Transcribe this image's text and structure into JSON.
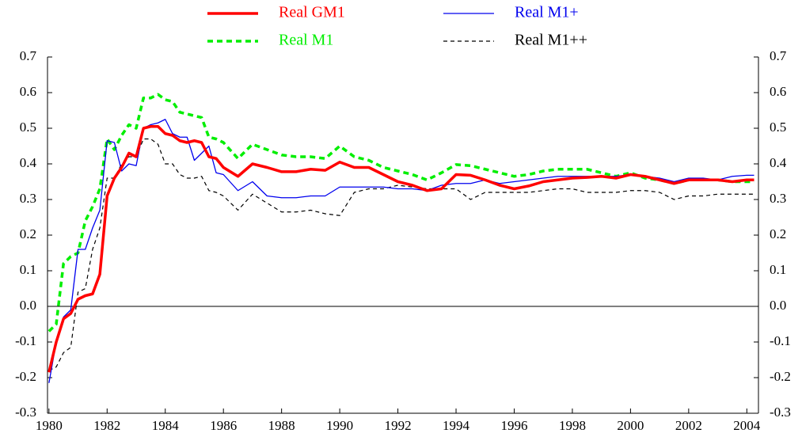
{
  "chart_data": {
    "type": "line",
    "x": [
      1980,
      1980.25,
      1980.5,
      1980.75,
      1981,
      1981.25,
      1981.5,
      1981.75,
      1982,
      1982.25,
      1982.5,
      1982.75,
      1983,
      1983.25,
      1983.5,
      1983.75,
      1984,
      1984.25,
      1984.5,
      1984.75,
      1985,
      1985.25,
      1985.5,
      1985.75,
      1986,
      1986.5,
      1987,
      1987.5,
      1988,
      1988.5,
      1989,
      1989.5,
      1990,
      1990.5,
      1991,
      1991.5,
      1992,
      1992.5,
      1993,
      1993.5,
      1994,
      1994.5,
      1995,
      1995.5,
      1996,
      1996.5,
      1997,
      1997.5,
      1998,
      1998.5,
      1999,
      1999.5,
      2000,
      2000.5,
      2001,
      2001.5,
      2002,
      2002.5,
      2003,
      2003.5,
      2004,
      2004.25
    ],
    "series": [
      {
        "name": "Real GM1",
        "color": "#ff0000",
        "style": "solid",
        "values": [
          -0.185,
          -0.1,
          -0.035,
          -0.02,
          0.02,
          0.03,
          0.035,
          0.09,
          0.31,
          0.36,
          0.39,
          0.43,
          0.42,
          0.5,
          0.505,
          0.505,
          0.485,
          0.48,
          0.465,
          0.46,
          0.465,
          0.46,
          0.42,
          0.415,
          0.39,
          0.365,
          0.4,
          0.39,
          0.378,
          0.378,
          0.385,
          0.382,
          0.405,
          0.39,
          0.39,
          0.37,
          0.35,
          0.34,
          0.325,
          0.33,
          0.37,
          0.368,
          0.355,
          0.34,
          0.33,
          0.338,
          0.35,
          0.355,
          0.36,
          0.362,
          0.365,
          0.36,
          0.37,
          0.365,
          0.355,
          0.345,
          0.355,
          0.355,
          0.355,
          0.35,
          0.355,
          0.355
        ]
      },
      {
        "name": "Real M1",
        "color": "#00ee00",
        "style": "dashed",
        "values": [
          -0.07,
          -0.05,
          0.12,
          0.14,
          0.15,
          0.24,
          0.28,
          0.33,
          0.47,
          0.44,
          0.48,
          0.51,
          0.5,
          0.585,
          0.585,
          0.595,
          0.58,
          0.575,
          0.545,
          0.54,
          0.535,
          0.53,
          0.475,
          0.47,
          0.46,
          0.415,
          0.455,
          0.44,
          0.425,
          0.42,
          0.42,
          0.415,
          0.45,
          0.42,
          0.41,
          0.39,
          0.38,
          0.37,
          0.355,
          0.375,
          0.398,
          0.395,
          0.385,
          0.375,
          0.365,
          0.37,
          0.38,
          0.385,
          0.385,
          0.385,
          0.375,
          0.365,
          0.375,
          0.36,
          0.355,
          0.345,
          0.355,
          0.355,
          0.355,
          0.35,
          0.35,
          0.35
        ]
      },
      {
        "name": "Real M1+",
        "color": "#0000ee",
        "style": "thin",
        "values": [
          -0.215,
          -0.1,
          -0.03,
          -0.01,
          0.16,
          0.16,
          0.22,
          0.27,
          0.465,
          0.46,
          0.38,
          0.4,
          0.395,
          0.5,
          0.51,
          0.515,
          0.525,
          0.485,
          0.475,
          0.475,
          0.41,
          0.43,
          0.45,
          0.375,
          0.37,
          0.325,
          0.35,
          0.31,
          0.305,
          0.305,
          0.31,
          0.31,
          0.335,
          0.335,
          0.335,
          0.335,
          0.33,
          0.33,
          0.325,
          0.34,
          0.345,
          0.345,
          0.355,
          0.345,
          0.35,
          0.355,
          0.36,
          0.365,
          0.365,
          0.365,
          0.365,
          0.365,
          0.37,
          0.365,
          0.36,
          0.35,
          0.36,
          0.36,
          0.355,
          0.365,
          0.368,
          0.368
        ]
      },
      {
        "name": "Real M1++",
        "color": "#000000",
        "style": "thin-dashed",
        "values": [
          -0.18,
          -0.17,
          -0.13,
          -0.115,
          0.04,
          0.05,
          0.16,
          0.22,
          0.36,
          0.36,
          0.4,
          0.42,
          0.42,
          0.47,
          0.47,
          0.455,
          0.4,
          0.4,
          0.37,
          0.36,
          0.36,
          0.365,
          0.325,
          0.32,
          0.31,
          0.27,
          0.315,
          0.29,
          0.265,
          0.265,
          0.27,
          0.26,
          0.255,
          0.32,
          0.33,
          0.33,
          0.34,
          0.335,
          0.33,
          0.33,
          0.33,
          0.3,
          0.32,
          0.32,
          0.32,
          0.32,
          0.325,
          0.33,
          0.33,
          0.32,
          0.32,
          0.32,
          0.325,
          0.325,
          0.32,
          0.3,
          0.31,
          0.31,
          0.315,
          0.315,
          0.315,
          0.315
        ]
      }
    ],
    "xlim": [
      1979.95,
      2004.4
    ],
    "xticks": [
      1980,
      1982,
      1984,
      1986,
      1988,
      1990,
      1992,
      1994,
      1996,
      1998,
      2000,
      2002,
      2004
    ],
    "ylim": [
      -0.3,
      0.7
    ],
    "yticks": [
      -0.3,
      -0.2,
      -0.1,
      {
        "value": 0,
        "label": "0.0"
      },
      0.1,
      0.2,
      0.3,
      0.4,
      0.5,
      0.6,
      0.7
    ],
    "y2lim": [
      -0.3,
      0.7
    ],
    "y2ticks": [
      -0.3,
      -0.2,
      -0.1,
      {
        "value": 0,
        "label": "0.0"
      },
      0.1,
      0.2,
      0.3,
      0.4,
      0.5,
      0.6,
      0.7
    ],
    "zero_line": true,
    "legend": "top"
  }
}
